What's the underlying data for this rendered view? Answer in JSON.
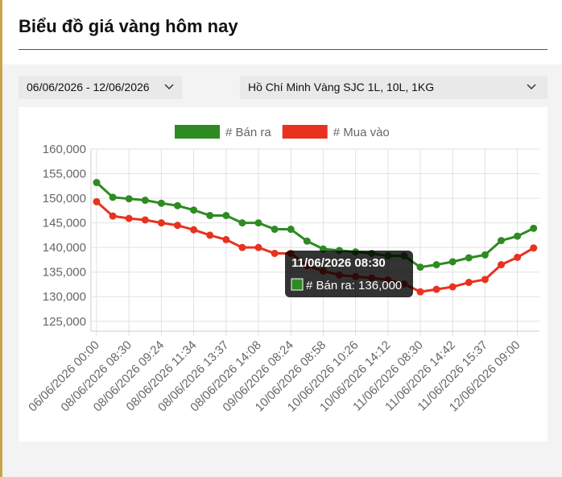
{
  "header": {
    "title": "Biểu đồ giá vàng hôm nay"
  },
  "filters": {
    "date_range": "06/06/2026 - 12/06/2026",
    "product": "Hồ Chí Minh Vàng SJC 1L, 10L, 1KG"
  },
  "chart_data": {
    "type": "line",
    "categories": [
      "06/06/2026 00:00",
      null,
      "08/06/2026 08:30",
      null,
      "08/06/2026 09:24",
      null,
      "08/06/2026 11:34",
      null,
      "08/06/2026 13:37",
      null,
      "08/06/2026 14:08",
      null,
      "09/06/2026 08:24",
      null,
      "10/06/2026 08:58",
      null,
      "10/06/2026 10:26",
      null,
      "10/06/2026 14:12",
      null,
      "11/06/2026 08:30",
      null,
      "11/06/2026 14:42",
      null,
      "11/06/2026 15:37",
      null,
      "12/06/2026 09:00",
      null
    ],
    "series": [
      {
        "name": "# Bán ra",
        "color": "#2e8b22",
        "values": [
          153200,
          150200,
          149900,
          149600,
          149000,
          148500,
          147600,
          146500,
          146500,
          145000,
          145000,
          143700,
          143700,
          141300,
          139700,
          139400,
          139100,
          138800,
          138300,
          138300,
          136000,
          136500,
          137100,
          137900,
          138500,
          141400,
          142300,
          143900
        ]
      },
      {
        "name": "# Mua vào",
        "color": "#e8321f",
        "values": [
          149300,
          146400,
          145900,
          145600,
          145000,
          144500,
          143600,
          142500,
          141600,
          140000,
          140000,
          138800,
          138800,
          136300,
          135200,
          134400,
          134100,
          133800,
          133400,
          132600,
          131000,
          131500,
          132000,
          132900,
          133500,
          136500,
          138000,
          139900
        ]
      }
    ],
    "ylim": [
      123000,
      160000
    ],
    "yticks": [
      {
        "value": 125000,
        "label": "125,000"
      },
      {
        "value": 130000,
        "label": "130,000"
      },
      {
        "value": 135000,
        "label": "135,000"
      },
      {
        "value": 140000,
        "label": "140,000"
      },
      {
        "value": 145000,
        "label": "145,000"
      },
      {
        "value": 150000,
        "label": "150,000"
      },
      {
        "value": 155000,
        "label": "155,000"
      },
      {
        "value": 160000,
        "label": "160,000"
      }
    ],
    "grid": true,
    "legend": "top",
    "tooltip": {
      "title": "11/06/2026 08:30",
      "label": "# Bán ra: 136,000"
    }
  }
}
